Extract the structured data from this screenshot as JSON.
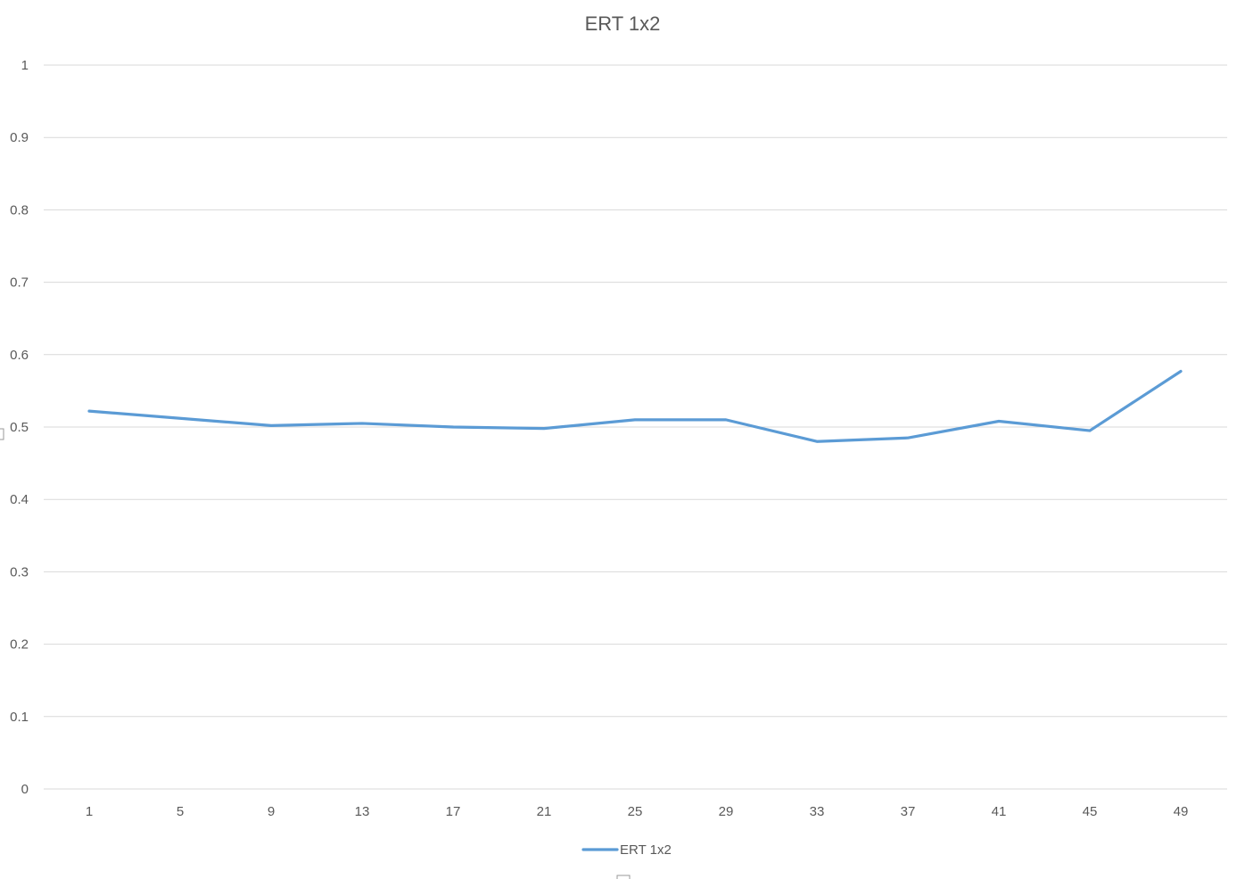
{
  "chart_data": {
    "type": "line",
    "title": "ERT 1x2",
    "xlabel": "",
    "ylabel": "",
    "ylim": [
      0,
      1
    ],
    "y_ticks": [
      "0",
      "0.1",
      "0.2",
      "0.3",
      "0.4",
      "0.5",
      "0.6",
      "0.7",
      "0.8",
      "0.9",
      "1"
    ],
    "categories": [
      "1",
      "5",
      "9",
      "13",
      "17",
      "21",
      "25",
      "29",
      "33",
      "37",
      "41",
      "45",
      "49"
    ],
    "series": [
      {
        "name": "ERT 1x2",
        "color": "#5b9bd5",
        "values": [
          0.522,
          0.512,
          0.502,
          0.505,
          0.5,
          0.498,
          0.51,
          0.51,
          0.48,
          0.485,
          0.508,
          0.495,
          0.577
        ]
      }
    ],
    "grid": true,
    "legend": "bottom"
  }
}
